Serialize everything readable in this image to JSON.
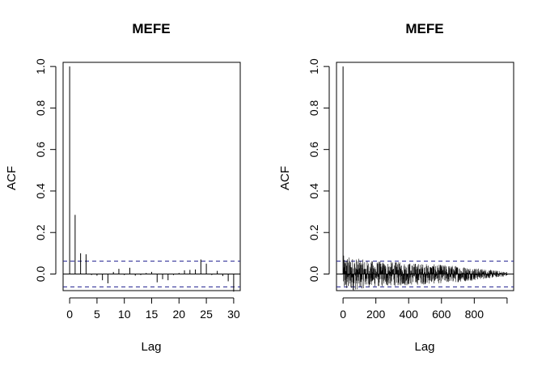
{
  "chart_data": [
    {
      "type": "bar",
      "title": "MEFE",
      "xlabel": "Lag",
      "ylabel": "ACF",
      "xlim": [
        -1.2,
        31.2
      ],
      "ylim": [
        -0.08,
        1.02
      ],
      "x_ticks": [
        0,
        5,
        10,
        15,
        20,
        25,
        30
      ],
      "x_tick_labels": [
        "0",
        "5",
        "10",
        "15",
        "20",
        "25",
        "30"
      ],
      "y_ticks": [
        0,
        0.2,
        0.4,
        0.6,
        0.8,
        1
      ],
      "y_tick_labels": [
        "0.0",
        "0.2",
        "0.4",
        "0.6",
        "0.8",
        "1.0"
      ],
      "confidence_band": 0.062,
      "grid": false,
      "lags": [
        0,
        1,
        2,
        3,
        4,
        5,
        6,
        7,
        8,
        9,
        10,
        11,
        12,
        13,
        14,
        15,
        16,
        17,
        18,
        19,
        20,
        21,
        22,
        23,
        24,
        25,
        26,
        27,
        28,
        29,
        30
      ],
      "values": [
        1.0,
        0.285,
        0.1,
        0.095,
        -0.005,
        -0.008,
        -0.03,
        -0.045,
        0.01,
        0.025,
        -0.005,
        0.03,
        -0.008,
        -0.005,
        0.005,
        0.01,
        -0.04,
        -0.025,
        -0.03,
        -0.005,
        0.005,
        0.018,
        0.02,
        0.022,
        0.07,
        0.05,
        -0.005,
        0.015,
        -0.01,
        -0.035,
        -0.085
      ]
    },
    {
      "type": "bar",
      "title": "MEFE",
      "xlabel": "Lag",
      "ylabel": "ACF",
      "xlim": [
        -40,
        1040
      ],
      "ylim": [
        -0.08,
        1.02
      ],
      "x_ticks": [
        0,
        200,
        400,
        600,
        800,
        1000
      ],
      "x_tick_labels": [
        "0",
        "200",
        "400",
        "600",
        "800",
        ""
      ],
      "y_ticks": [
        0,
        0.2,
        0.4,
        0.6,
        0.8,
        1
      ],
      "y_tick_labels": [
        "0.0",
        "0.2",
        "0.4",
        "0.6",
        "0.8",
        "1.0"
      ],
      "confidence_band": 0.062,
      "grid": false,
      "lag_max": 1000,
      "lag0_value": 1.0,
      "amplitude_profile": [
        {
          "lag": 1,
          "amp": 0.09
        },
        {
          "lag": 150,
          "amp": 0.065
        },
        {
          "lag": 400,
          "amp": 0.055
        },
        {
          "lag": 700,
          "amp": 0.04
        },
        {
          "lag": 1000,
          "amp": 0.01
        }
      ]
    }
  ]
}
